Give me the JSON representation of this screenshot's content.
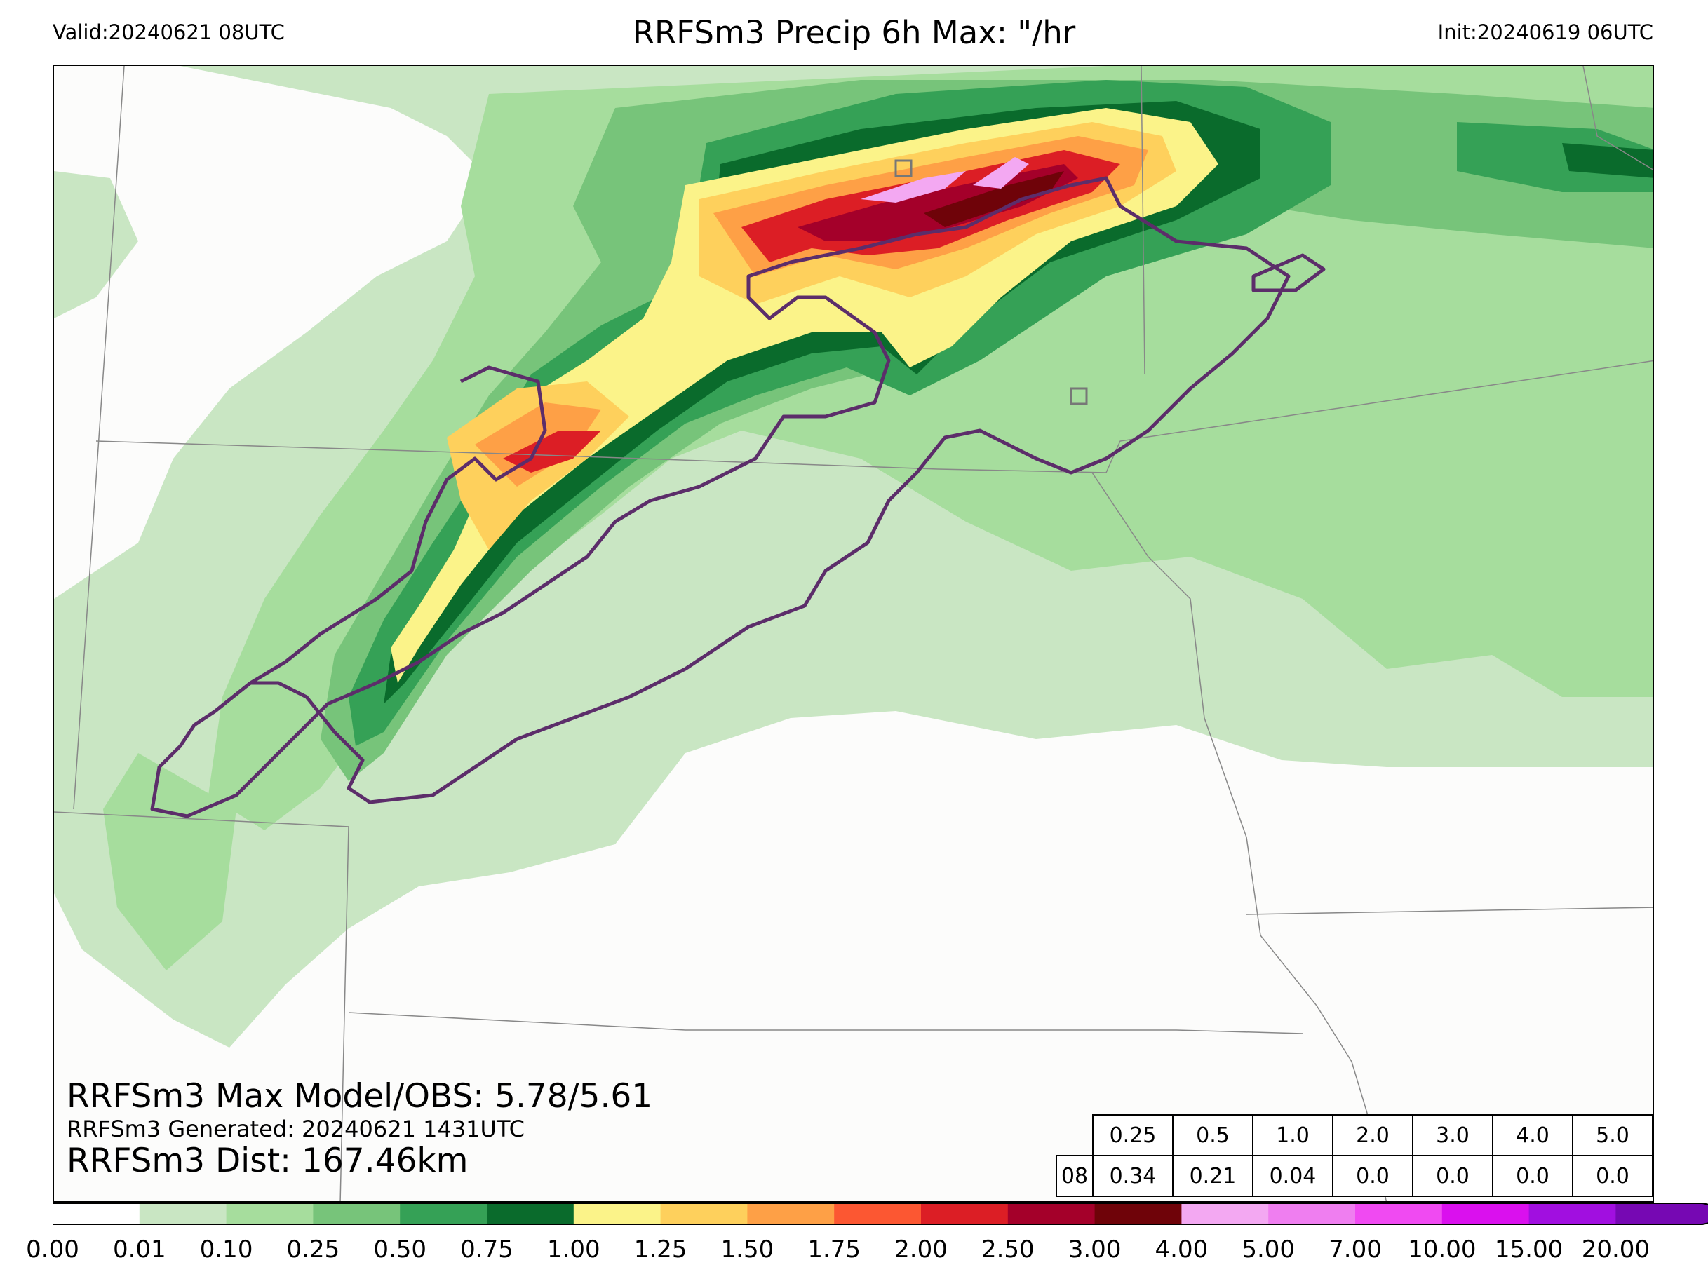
{
  "header": {
    "valid": "Valid:20240621 08UTC",
    "title": "RRFSm3 Precip 6h Max: \"/hr",
    "init": "Init:20240619 06UTC"
  },
  "stats": {
    "max_line": "RRFSm3 Max Model/OBS: 5.78/5.61",
    "generated_line": "RRFSm3 Generated: 20240621 1431UTC",
    "dist_line": "RRFSm3 Dist: 167.46km"
  },
  "threshold_table": {
    "thresholds": [
      "0.25",
      "0.5",
      "1.0",
      "2.0",
      "3.0",
      "4.0",
      "5.0"
    ],
    "row_label": "08",
    "values": [
      "0.34",
      "0.21",
      "0.04",
      "0.0",
      "0.0",
      "0.0",
      "0.0"
    ]
  },
  "colorbar": {
    "ticks": [
      "0.00",
      "0.01",
      "0.10",
      "0.25",
      "0.50",
      "0.75",
      "1.00",
      "1.25",
      "1.50",
      "1.75",
      "2.00",
      "2.50",
      "3.00",
      "4.00",
      "5.00",
      "7.00",
      "10.00",
      "15.00",
      "20.00"
    ],
    "colors": [
      "#ffffff",
      "#c9e6c3",
      "#a6dd9d",
      "#77c47a",
      "#35a156",
      "#0a6b2c",
      "#fbf389",
      "#fed05c",
      "#fea046",
      "#fc5732",
      "#dc1e25",
      "#a4002a",
      "#6f0309",
      "#f3a8f2",
      "#ef7ef0",
      "#f04af2",
      "#da10ee",
      "#a10fe0",
      "#7608b3"
    ],
    "extend_color": "#7608b3"
  },
  "map_colors": {
    "background": "#fcfcfb",
    "boundary": "#888888",
    "obs_outline": "#5c2d6a",
    "station_marker": "#777777"
  }
}
